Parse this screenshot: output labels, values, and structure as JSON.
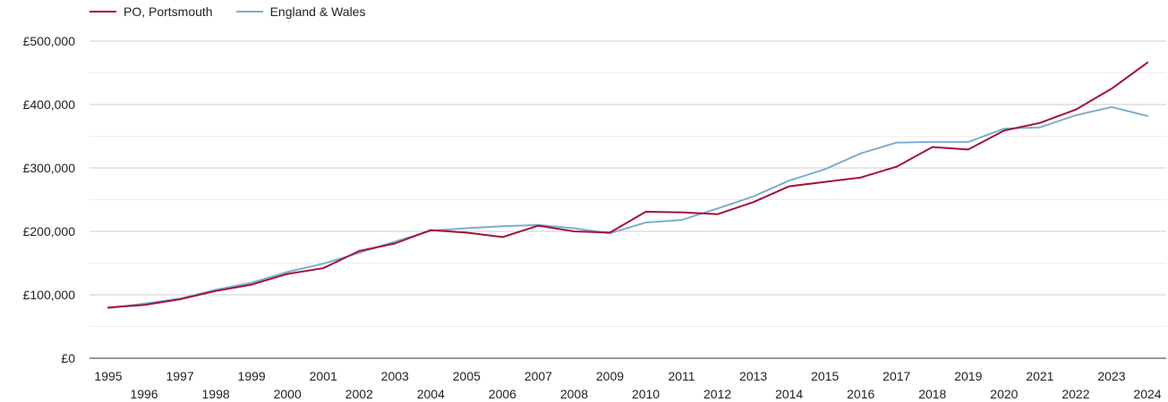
{
  "chart_data": {
    "type": "line",
    "title": "",
    "xlabel": "",
    "ylabel": "",
    "x": [
      1995,
      1996,
      1997,
      1998,
      1999,
      2000,
      2001,
      2002,
      2003,
      2004,
      2005,
      2006,
      2007,
      2008,
      2009,
      2010,
      2011,
      2012,
      2013,
      2014,
      2015,
      2016,
      2017,
      2018,
      2019,
      2020,
      2021,
      2022,
      2023,
      2024
    ],
    "ylim": [
      0,
      500000
    ],
    "y_ticks": [
      {
        "value": 0,
        "label": "£0"
      },
      {
        "value": 100000,
        "label": "£100,000"
      },
      {
        "value": 200000,
        "label": "£200,000"
      },
      {
        "value": 300000,
        "label": "£300,000"
      },
      {
        "value": 400000,
        "label": "£400,000"
      },
      {
        "value": 500000,
        "label": "£500,000"
      }
    ],
    "grid": true,
    "legend_position": "top-left",
    "series": [
      {
        "name": "PO, Portsmouth",
        "color": "#a50f3c",
        "values": [
          80000,
          84000,
          93000,
          106000,
          116000,
          133000,
          142000,
          169000,
          181000,
          202000,
          198000,
          191000,
          209000,
          200000,
          198000,
          231000,
          230000,
          227000,
          246000,
          271000,
          278000,
          285000,
          302000,
          333000,
          329000,
          359000,
          371000,
          392000,
          425000,
          466000
        ]
      },
      {
        "name": "England & Wales",
        "color": "#7aaed0",
        "values": [
          79000,
          86000,
          94000,
          108000,
          119000,
          136000,
          149000,
          166000,
          184000,
          201000,
          205000,
          208000,
          210000,
          205000,
          197000,
          214000,
          218000,
          236000,
          255000,
          280000,
          298000,
          323000,
          340000,
          341000,
          341000,
          362000,
          364000,
          383000,
          396000,
          382000
        ]
      }
    ]
  }
}
